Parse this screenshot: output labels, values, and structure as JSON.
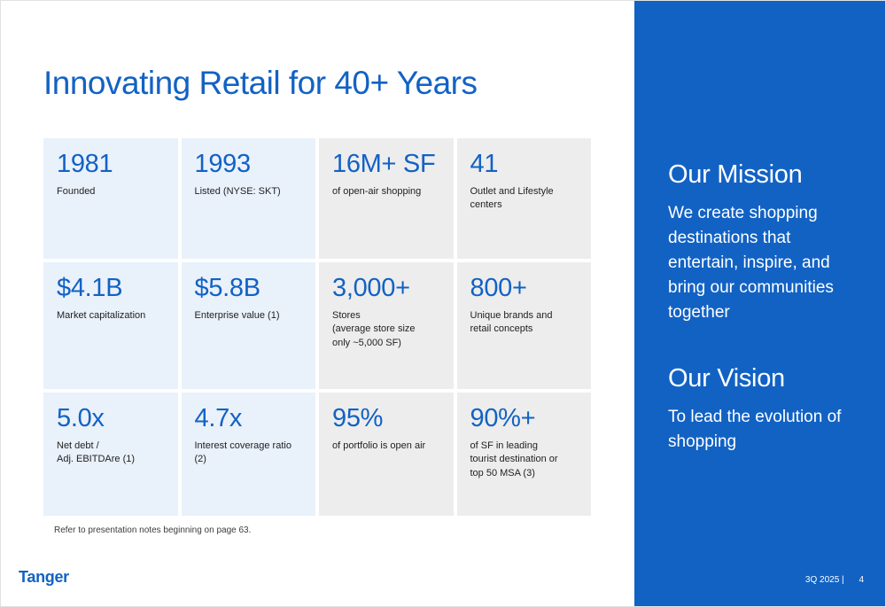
{
  "slide": {
    "title": "Innovating Retail for 40+ Years",
    "footnote": "Refer to presentation notes beginning on page 63.",
    "logo_text": "Tanger",
    "footer_meta": "3Q 2025  |",
    "page_number": "4"
  },
  "stats": [
    {
      "value": "1981",
      "label": "Founded"
    },
    {
      "value": "1993",
      "label": "Listed  (NYSE: SKT)"
    },
    {
      "value": "16M+ SF",
      "label": "of open-air shopping"
    },
    {
      "value": "41",
      "label": "Outlet and Lifestyle\ncenters"
    },
    {
      "value": "$4.1B",
      "label": "Market capitalization"
    },
    {
      "value": "$5.8B",
      "label": "Enterprise value (1)"
    },
    {
      "value": "3,000+",
      "label": "Stores\n(average store size\nonly ~5,000 SF)"
    },
    {
      "value": "800+",
      "label": "Unique brands and\nretail concepts"
    },
    {
      "value": "5.0x",
      "label": "Net debt /\nAdj. EBITDAre (1)"
    },
    {
      "value": "4.7x",
      "label": "Interest coverage ratio (2)"
    },
    {
      "value": "95%",
      "label": "of portfolio is open air"
    },
    {
      "value": "90%+",
      "label": "of SF in leading\ntourist destination or\ntop 50 MSA (3)"
    }
  ],
  "sidebar": {
    "mission_title": "Our Mission",
    "mission_body": "We create shopping destinations that entertain, inspire, and bring our communities together",
    "vision_title": "Our Vision",
    "vision_body": "To lead the evolution of shopping"
  },
  "colors": {
    "brand_blue": "#1262c4",
    "card_blue": "#e9f1fb",
    "card_gray": "#ededed"
  }
}
